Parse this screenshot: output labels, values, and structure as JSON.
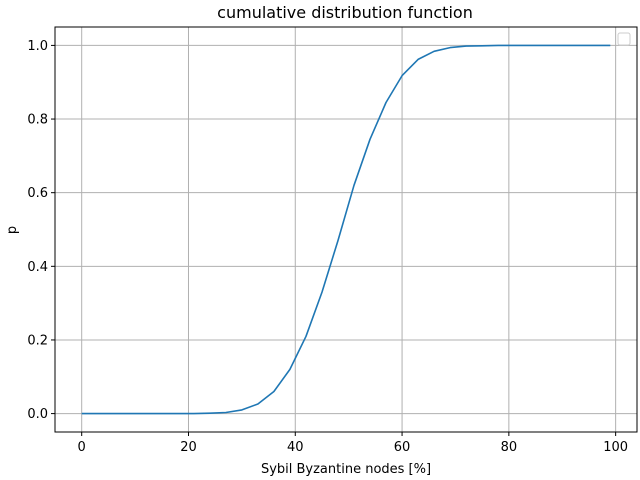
{
  "chart_data": {
    "type": "line",
    "title": "cumulative distribution function",
    "xlabel": "Sybil Byzantine nodes [%]",
    "ylabel": "p",
    "xlim": [
      -5,
      104
    ],
    "ylim": [
      -0.05,
      1.05
    ],
    "xticks": [
      0,
      20,
      40,
      60,
      80,
      100
    ],
    "yticks": [
      0.0,
      0.2,
      0.4,
      0.6,
      0.8,
      1.0
    ],
    "xtick_labels": [
      "0",
      "20",
      "40",
      "60",
      "80",
      "100"
    ],
    "ytick_labels": [
      "0.0",
      "0.2",
      "0.4",
      "0.6",
      "0.8",
      "1.0"
    ],
    "grid": true,
    "legend": "upper right (empty)",
    "series": [
      {
        "color": "#1f77b4",
        "x": [
          0,
          3,
          6,
          9,
          12,
          15,
          18,
          21,
          24,
          27,
          30,
          33,
          36,
          39,
          42,
          45,
          48,
          51,
          54,
          57,
          60,
          63,
          66,
          69,
          72,
          75,
          78,
          81,
          84,
          87,
          90,
          93,
          96,
          99
        ],
        "y": [
          0.0,
          0.0,
          0.0,
          0.0,
          0.0,
          0.0,
          0.0,
          0.0,
          0.001,
          0.003,
          0.01,
          0.026,
          0.06,
          0.12,
          0.21,
          0.33,
          0.47,
          0.62,
          0.745,
          0.845,
          0.918,
          0.962,
          0.984,
          0.994,
          0.998,
          0.999,
          1.0,
          1.0,
          1.0,
          1.0,
          1.0,
          1.0,
          1.0,
          1.0
        ]
      }
    ]
  }
}
